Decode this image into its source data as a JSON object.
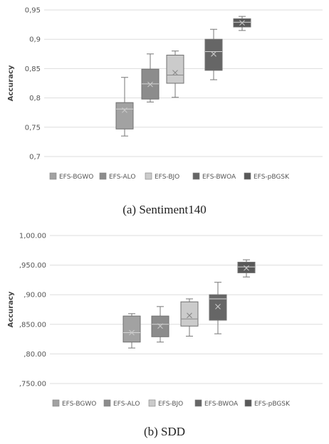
{
  "chart_data": [
    {
      "type": "box",
      "caption": "(a)  Sentiment140",
      "ylabel": "Accuracy",
      "ylim": [
        0.7,
        0.95
      ],
      "yticks": [
        "0,7",
        "0,75",
        "0,8",
        "0,85",
        "0,9",
        "0,95"
      ],
      "grid": true,
      "legend_position": "bottom",
      "series": [
        {
          "name": "EFS-BGWO",
          "color": "#a2a2a2",
          "min": 0.735,
          "q1": 0.747,
          "median": 0.781,
          "q3": 0.792,
          "max": 0.835,
          "mean": 0.779
        },
        {
          "name": "EFS-ALO",
          "color": "#8c8c8c",
          "min": 0.793,
          "q1": 0.798,
          "median": 0.824,
          "q3": 0.849,
          "max": 0.875,
          "mean": 0.823
        },
        {
          "name": "EFS-BJO",
          "color": "#cbcbcb",
          "min": 0.801,
          "q1": 0.825,
          "median": 0.839,
          "q3": 0.873,
          "max": 0.88,
          "mean": 0.843
        },
        {
          "name": "EFS-BWOA",
          "color": "#666666",
          "min": 0.831,
          "q1": 0.847,
          "median": 0.879,
          "q3": 0.9,
          "max": 0.917,
          "mean": 0.875
        },
        {
          "name": "EFS-pBGSK",
          "color": "#595959",
          "min": 0.915,
          "q1": 0.921,
          "median": 0.929,
          "q3": 0.935,
          "max": 0.939,
          "mean": 0.928
        }
      ]
    },
    {
      "type": "box",
      "caption": "(b)  SDD",
      "ylabel": "Accuracy",
      "ylim": [
        0.75,
        1.0
      ],
      "yticks": [
        ",750.00",
        ",80.00",
        ",850.00",
        ",90.00",
        ",950.00",
        "1,00.00"
      ],
      "grid": true,
      "legend_position": "bottom",
      "series": [
        {
          "name": "EFS-BGWO",
          "color": "#a2a2a2",
          "min": 0.81,
          "q1": 0.82,
          "median": 0.836,
          "q3": 0.864,
          "max": 0.868,
          "mean": 0.836
        },
        {
          "name": "EFS-ALO",
          "color": "#8c8c8c",
          "min": 0.82,
          "q1": 0.829,
          "median": 0.85,
          "q3": 0.864,
          "max": 0.88,
          "mean": 0.847
        },
        {
          "name": "EFS-BJO",
          "color": "#cbcbcb",
          "min": 0.83,
          "q1": 0.847,
          "median": 0.859,
          "q3": 0.888,
          "max": 0.893,
          "mean": 0.865
        },
        {
          "name": "EFS-BWOA",
          "color": "#666666",
          "min": 0.834,
          "q1": 0.857,
          "median": 0.893,
          "q3": 0.9,
          "max": 0.921,
          "mean": 0.88
        },
        {
          "name": "EFS-pBGSK",
          "color": "#595959",
          "min": 0.93,
          "q1": 0.937,
          "median": 0.947,
          "q3": 0.955,
          "max": 0.959,
          "mean": 0.945
        }
      ]
    }
  ]
}
